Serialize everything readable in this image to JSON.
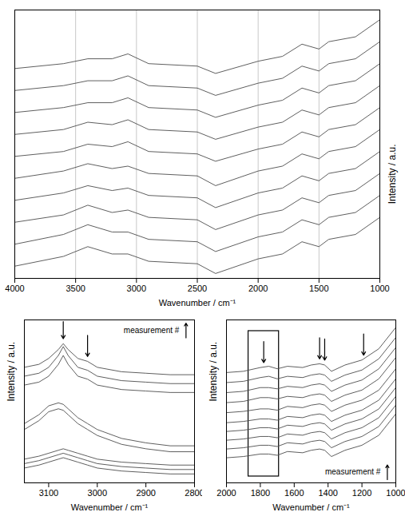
{
  "chart_data": [
    {
      "type": "line",
      "x_label": "Wavenumber / cm⁻¹",
      "y_label": "Intensity / a.u.",
      "xlim": [
        4000,
        1000
      ],
      "xticks": [
        4000,
        3500,
        3000,
        2500,
        2000,
        1500,
        1000
      ],
      "ylim": [
        0,
        11
      ],
      "tick_labels": "x",
      "grid": true,
      "color": "#4d4d4d",
      "x": [
        4000,
        3600,
        3400,
        3200,
        3070,
        2900,
        2500,
        2350,
        2000,
        1800,
        1640,
        1500,
        1420,
        1200,
        1000
      ],
      "series": [
        {
          "values": [
            0.5,
            0.9,
            1.3,
            1.0,
            1.0,
            0.7,
            0.6,
            0.2,
            0.8,
            1.0,
            1.5,
            1.3,
            1.6,
            1.8,
            2.5
          ]
        },
        {
          "values": [
            1.4,
            1.8,
            2.2,
            1.9,
            1.9,
            1.6,
            1.5,
            1.1,
            1.7,
            1.9,
            2.4,
            2.2,
            2.5,
            2.7,
            3.4
          ]
        },
        {
          "values": [
            2.3,
            2.6,
            3.0,
            2.7,
            2.8,
            2.5,
            2.4,
            2.0,
            2.6,
            2.8,
            3.3,
            3.1,
            3.4,
            3.6,
            4.3
          ]
        },
        {
          "values": [
            3.2,
            3.5,
            3.8,
            3.6,
            3.7,
            3.4,
            3.3,
            2.9,
            3.5,
            3.7,
            4.2,
            4.0,
            4.3,
            4.5,
            5.2
          ]
        },
        {
          "values": [
            4.1,
            4.4,
            4.7,
            4.5,
            4.6,
            4.3,
            4.2,
            3.8,
            4.4,
            4.6,
            5.1,
            4.9,
            5.2,
            5.4,
            6.1
          ]
        },
        {
          "values": [
            5.0,
            5.2,
            5.5,
            5.4,
            5.6,
            5.2,
            5.1,
            4.8,
            5.3,
            5.5,
            6.0,
            5.8,
            6.1,
            6.3,
            7.0
          ]
        },
        {
          "values": [
            5.9,
            6.1,
            6.4,
            6.3,
            6.5,
            6.1,
            6.0,
            5.7,
            6.2,
            6.4,
            6.9,
            6.7,
            7.0,
            7.2,
            7.9
          ]
        },
        {
          "values": [
            6.8,
            7.0,
            7.2,
            7.2,
            7.4,
            7.0,
            6.9,
            6.6,
            7.1,
            7.3,
            7.8,
            7.6,
            7.9,
            8.1,
            8.8
          ]
        },
        {
          "values": [
            7.7,
            7.9,
            8.1,
            8.1,
            8.3,
            7.9,
            7.8,
            7.5,
            8.0,
            8.2,
            8.7,
            8.5,
            8.8,
            9.0,
            9.7
          ]
        },
        {
          "values": [
            8.6,
            8.8,
            9.0,
            9.0,
            9.2,
            8.8,
            8.7,
            8.4,
            8.9,
            9.1,
            9.6,
            9.4,
            9.7,
            9.9,
            10.6
          ]
        }
      ]
    },
    {
      "type": "line",
      "x_label": "Wavenumber / cm⁻¹",
      "y_label": "Intensity / a.u.",
      "xlim": [
        3150,
        2800
      ],
      "xticks": [
        3100,
        3000,
        2900,
        2800
      ],
      "ylim": [
        0,
        11
      ],
      "tick_labels": "x",
      "grid": false,
      "color": "#4d4d4d",
      "annotation": "measurement #",
      "arrows": [
        3070,
        3020
      ],
      "x": [
        3150,
        3120,
        3100,
        3080,
        3070,
        3060,
        3040,
        3020,
        3000,
        2950,
        2900,
        2850,
        2800
      ],
      "series": [
        {
          "values": [
            1.0,
            1.2,
            1.4,
            1.6,
            1.7,
            1.6,
            1.4,
            1.2,
            1.0,
            0.8,
            0.7,
            0.6,
            0.6
          ]
        },
        {
          "values": [
            1.3,
            1.5,
            1.7,
            1.9,
            2.0,
            1.9,
            1.7,
            1.5,
            1.3,
            1.1,
            1.0,
            0.9,
            0.9
          ]
        },
        {
          "values": [
            1.6,
            1.8,
            2.0,
            2.2,
            2.3,
            2.2,
            2.0,
            1.8,
            1.6,
            1.4,
            1.3,
            1.2,
            1.2
          ]
        },
        {
          "values": [
            3.6,
            4.2,
            4.8,
            5.0,
            4.9,
            4.6,
            4.0,
            3.6,
            3.2,
            2.6,
            2.3,
            2.1,
            2.1
          ]
        },
        {
          "values": [
            4.0,
            4.6,
            5.2,
            5.4,
            5.3,
            5.0,
            4.4,
            4.0,
            3.6,
            3.0,
            2.7,
            2.5,
            2.5
          ]
        },
        {
          "values": [
            6.6,
            6.8,
            7.2,
            8.0,
            8.6,
            8.0,
            7.2,
            7.0,
            6.6,
            6.3,
            6.2,
            6.1,
            6.1
          ]
        },
        {
          "values": [
            7.2,
            7.4,
            7.8,
            8.6,
            9.2,
            8.6,
            7.8,
            7.6,
            7.2,
            6.9,
            6.8,
            6.7,
            6.7
          ]
        },
        {
          "values": [
            7.8,
            8.0,
            8.4,
            9.0,
            9.4,
            9.0,
            8.4,
            8.2,
            7.8,
            7.5,
            7.4,
            7.3,
            7.3
          ]
        }
      ]
    },
    {
      "type": "line",
      "x_label": "Wavenumber / cm⁻¹",
      "y_label": "Intensity / a.u.",
      "xlim": [
        2000,
        1000
      ],
      "xticks": [
        2000,
        1800,
        1600,
        1400,
        1200,
        1000
      ],
      "ylim": [
        -1,
        12
      ],
      "tick_labels": "x",
      "grid": false,
      "color": "#4d4d4d",
      "annotation": "measurement #",
      "arrows": [
        1780,
        1450,
        1420,
        1190
      ],
      "box": [
        1870,
        1690
      ],
      "x": [
        2000,
        1900,
        1800,
        1750,
        1700,
        1640,
        1550,
        1500,
        1450,
        1420,
        1380,
        1300,
        1200,
        1100,
        1000
      ],
      "series": [
        {
          "values": [
            1.0,
            1.1,
            1.3,
            1.3,
            1.2,
            1.5,
            1.4,
            1.6,
            1.7,
            1.6,
            1.1,
            1.6,
            2.0,
            2.8,
            4.5
          ]
        },
        {
          "values": [
            1.7,
            1.8,
            2.0,
            2.0,
            1.9,
            2.2,
            2.1,
            2.3,
            2.4,
            2.3,
            1.8,
            2.3,
            2.7,
            3.5,
            5.2
          ]
        },
        {
          "values": [
            2.4,
            2.5,
            2.7,
            2.7,
            2.6,
            2.9,
            2.8,
            3.0,
            3.1,
            3.0,
            2.5,
            3.0,
            3.4,
            4.2,
            5.9
          ]
        },
        {
          "values": [
            3.1,
            3.2,
            3.4,
            3.4,
            3.3,
            3.6,
            3.5,
            3.7,
            3.8,
            3.7,
            3.2,
            3.7,
            4.1,
            4.9,
            6.6
          ]
        },
        {
          "values": [
            3.8,
            3.9,
            4.1,
            4.1,
            4.0,
            4.3,
            4.2,
            4.4,
            4.5,
            4.4,
            3.9,
            4.4,
            4.8,
            5.6,
            7.3
          ]
        },
        {
          "values": [
            4.6,
            4.7,
            4.9,
            4.9,
            4.8,
            5.1,
            5.0,
            5.2,
            5.3,
            5.2,
            4.7,
            5.2,
            5.6,
            6.4,
            8.1
          ]
        },
        {
          "values": [
            5.4,
            5.5,
            5.8,
            5.8,
            5.7,
            5.9,
            5.8,
            6.0,
            6.1,
            6.0,
            5.5,
            6.0,
            6.4,
            7.3,
            9.0
          ]
        },
        {
          "values": [
            6.2,
            6.3,
            6.6,
            6.6,
            6.5,
            6.7,
            6.6,
            6.8,
            6.9,
            6.8,
            6.3,
            6.8,
            7.2,
            8.1,
            9.8
          ]
        },
        {
          "values": [
            7.0,
            7.1,
            7.4,
            7.5,
            7.3,
            7.5,
            7.4,
            7.6,
            7.7,
            7.6,
            7.1,
            7.6,
            8.0,
            8.9,
            10.6
          ]
        },
        {
          "values": [
            7.8,
            7.9,
            8.2,
            8.3,
            8.1,
            8.3,
            8.2,
            8.4,
            8.5,
            8.4,
            7.9,
            8.4,
            8.8,
            9.7,
            11.4
          ]
        }
      ]
    }
  ]
}
